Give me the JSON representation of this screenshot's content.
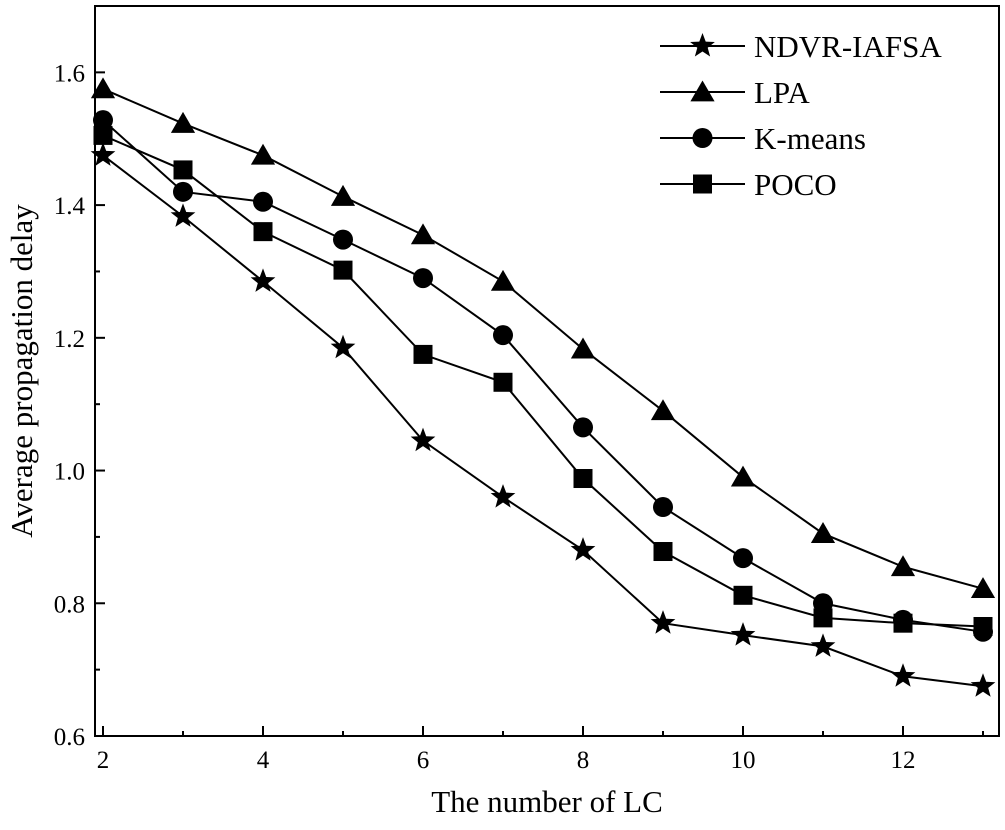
{
  "chart_data": {
    "type": "line",
    "title": "",
    "xlabel": "The number of LC",
    "ylabel": "Average propagation delay",
    "xlim": [
      1.9,
      13.2
    ],
    "ylim": [
      0.6,
      1.7
    ],
    "xticks": [
      2,
      4,
      6,
      8,
      10,
      12
    ],
    "yticks": [
      0.6,
      0.8,
      1.0,
      1.2,
      1.4,
      1.6
    ],
    "xtick_labels": [
      "2",
      "4",
      "6",
      "8",
      "10",
      "12"
    ],
    "ytick_labels": [
      "0.6",
      "0.8",
      "1.0",
      "1.2",
      "1.4",
      "1.6"
    ],
    "legend_position": "top-right",
    "x": [
      2,
      3,
      4,
      5,
      6,
      7,
      8,
      9,
      10,
      11,
      12,
      13
    ],
    "series": [
      {
        "name": "NDVR-IAFSA",
        "marker": "star",
        "color": "#000000",
        "values": [
          1.475,
          1.383,
          1.285,
          1.185,
          1.045,
          0.96,
          0.88,
          0.77,
          0.752,
          0.735,
          0.69,
          0.675
        ]
      },
      {
        "name": "LPA",
        "marker": "triangle",
        "color": "#000000",
        "values": [
          1.575,
          1.523,
          1.475,
          1.413,
          1.355,
          1.285,
          1.183,
          1.09,
          0.99,
          0.905,
          0.855,
          0.822
        ]
      },
      {
        "name": "K-means",
        "marker": "circle",
        "color": "#000000",
        "values": [
          1.528,
          1.42,
          1.405,
          1.348,
          1.29,
          1.204,
          1.065,
          0.945,
          0.868,
          0.8,
          0.775,
          0.757
        ]
      },
      {
        "name": "POCO",
        "marker": "square",
        "color": "#000000",
        "values": [
          1.505,
          1.453,
          1.36,
          1.302,
          1.175,
          1.133,
          0.988,
          0.878,
          0.812,
          0.778,
          0.77,
          0.765
        ]
      }
    ]
  }
}
